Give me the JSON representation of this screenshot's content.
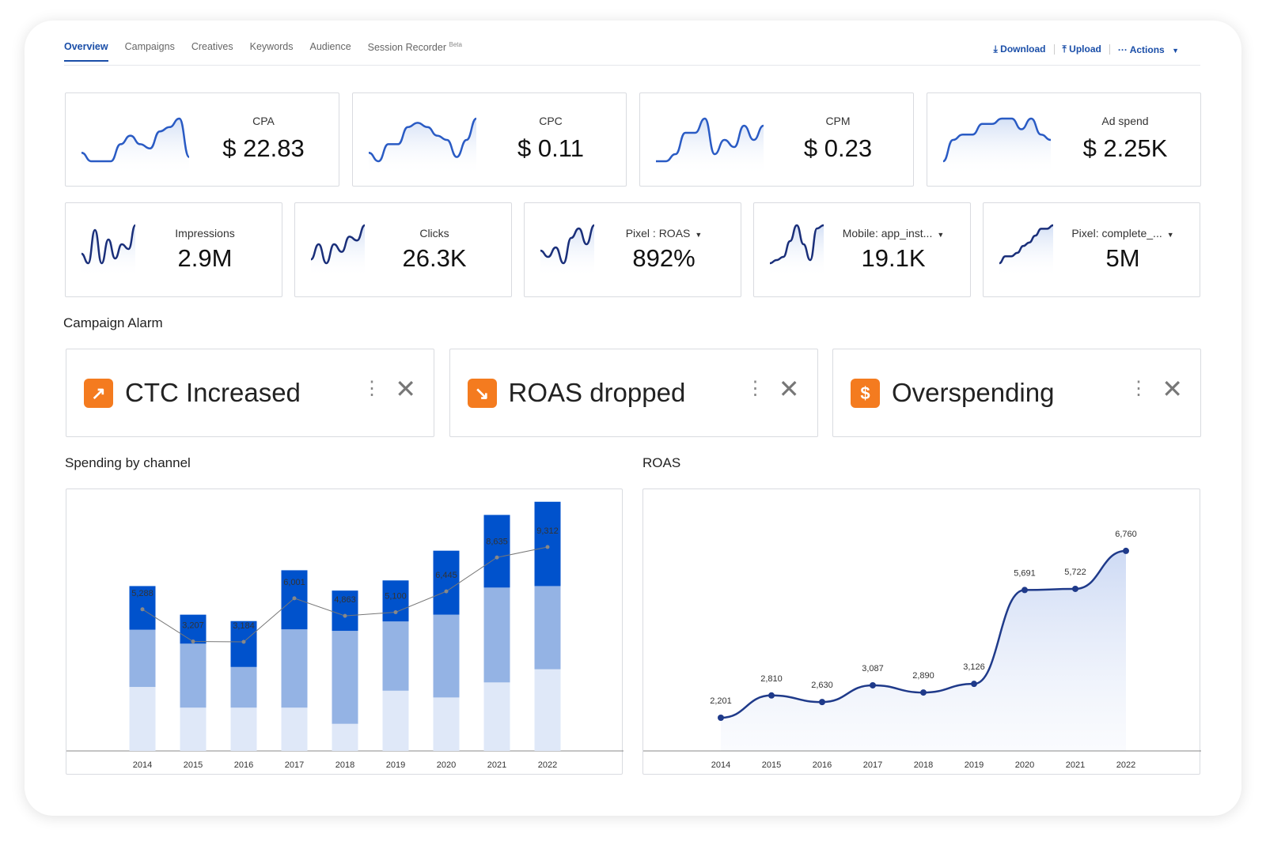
{
  "tabs": [
    {
      "label": "Overview"
    },
    {
      "label": "Campaigns"
    },
    {
      "label": "Creatives"
    },
    {
      "label": "Keywords"
    },
    {
      "label": "Audience"
    },
    {
      "label": "Session Recorder",
      "badge": "Beta"
    }
  ],
  "actions": {
    "download": "Download",
    "upload": "Upload",
    "more": "Actions"
  },
  "kpi_top": [
    {
      "label": "CPA",
      "value": "$ 22.83",
      "spark": [
        3,
        1,
        1,
        1,
        5,
        7,
        5,
        4,
        8,
        9,
        11,
        2
      ]
    },
    {
      "label": "CPC",
      "value": "$ 0.11",
      "spark": [
        3,
        1,
        5,
        5,
        9,
        10,
        9,
        7,
        6,
        2,
        6,
        11
      ]
    },
    {
      "label": "CPM",
      "value": "$ 0.23",
      "spark": [
        2,
        2,
        3,
        6,
        6,
        8,
        3,
        5,
        4,
        7,
        5,
        7
      ]
    },
    {
      "label": "Ad spend",
      "value": "$ 2.25K",
      "spark": [
        3,
        7,
        8,
        8,
        10,
        10,
        11,
        11,
        9,
        11,
        8,
        7
      ]
    }
  ],
  "kpi_bottom": [
    {
      "label": "Impressions",
      "value": "2.9M",
      "spark": [
        4,
        2,
        9,
        2,
        7,
        3,
        6,
        5,
        10
      ]
    },
    {
      "label": "Clicks",
      "value": "26.3K",
      "spark": [
        2,
        6,
        1,
        6,
        4,
        8,
        7,
        11
      ]
    },
    {
      "label": "Pixel : ROAS",
      "value": "892%",
      "spark": [
        4,
        2,
        5,
        0,
        8,
        11,
        6,
        12
      ],
      "dropdown": true
    },
    {
      "label": "Mobile: app_inst...",
      "value": "19.1K",
      "spark": [
        0,
        1,
        2,
        7,
        12,
        6,
        1,
        11,
        12
      ],
      "dropdown": true
    },
    {
      "label": "Pixel: complete_...",
      "value": "5M",
      "spark": [
        0,
        2,
        2,
        3,
        5,
        6,
        8,
        10,
        10,
        11
      ],
      "dropdown": true
    }
  ],
  "alarm_title": "Campaign Alarm",
  "alarms": [
    {
      "title": "CTC Increased",
      "icon": "trend-up-icon",
      "glyph": "↗"
    },
    {
      "title": "ROAS dropped",
      "icon": "trend-down-icon",
      "glyph": "↘"
    },
    {
      "title": "Overspending",
      "icon": "dollar-alert-icon",
      "glyph": "$"
    }
  ],
  "colors": {
    "accent": "#1a4ea8",
    "orange": "#f47b1f",
    "dark": "#0052cc",
    "mid": "#94b3e4",
    "light": "#dfe8f8",
    "line": "#1f3a8a"
  },
  "chart_data": [
    {
      "type": "bar",
      "title": "Spending by channel",
      "categories": [
        "2014",
        "2015",
        "2016",
        "2017",
        "2018",
        "2019",
        "2020",
        "2021",
        "2022"
      ],
      "series": [
        {
          "name": "light",
          "values": [
            170,
            115,
            115,
            115,
            72,
            160,
            142,
            182,
            217
          ]
        },
        {
          "name": "mid",
          "values": [
            152,
            170,
            108,
            208,
            247,
            184,
            220,
            252,
            221
          ]
        },
        {
          "name": "dark",
          "values": [
            116,
            77,
            122,
            157,
            107,
            109,
            170,
            193,
            224
          ]
        }
      ],
      "line": {
        "values": [
          5288,
          3207,
          3184,
          6001,
          4863,
          5100,
          6445,
          8635,
          9312
        ],
        "labels": [
          "5,288",
          "3,207",
          "3,184",
          "6,001",
          "4,863",
          "5,100",
          "6,445",
          "8,635",
          "9,312"
        ]
      }
    },
    {
      "type": "area",
      "title": "ROAS",
      "categories": [
        "2014",
        "2015",
        "2016",
        "2017",
        "2018",
        "2019",
        "2020",
        "2021",
        "2022"
      ],
      "values": [
        2201,
        2810,
        2630,
        3087,
        2890,
        3126,
        5691,
        5722,
        6760
      ],
      "labels": [
        "2,201",
        "2,810",
        "2,630",
        "3,087",
        "2,890",
        "3,126",
        "5,691",
        "5,722",
        "6,760"
      ]
    }
  ]
}
